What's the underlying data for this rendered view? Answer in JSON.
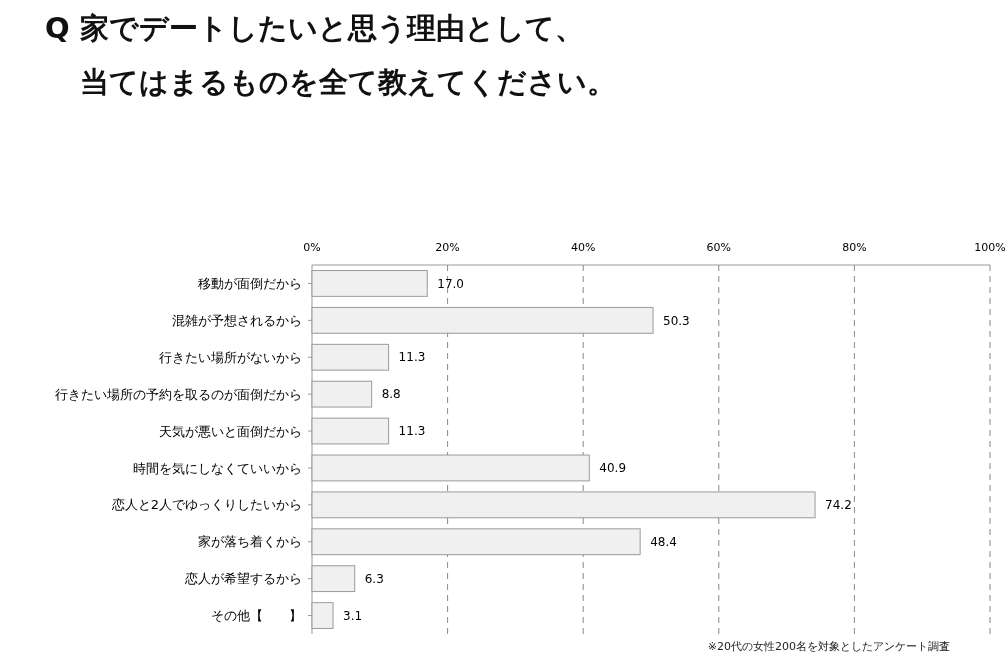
{
  "chart_data": {
    "type": "bar",
    "orientation": "horizontal",
    "title": "Q 家でデートしたいと思う理由として、",
    "subtitle": "当てはまるものを全て教えてください。",
    "categories": [
      "移動が面倒だから",
      "混雑が予想されるから",
      "行きたい場所がないから",
      "行きたい場所の予約を取るのが面倒だから",
      "天気が悪いと面倒だから",
      "時間を気にしなくていいから",
      "恋人と2人でゆっくりしたいから",
      "家が落ち着くから",
      "恋人が希望するから",
      "その他【　　】"
    ],
    "values": [
      17.0,
      50.3,
      11.3,
      8.8,
      11.3,
      40.9,
      74.2,
      48.4,
      6.3,
      3.1
    ],
    "value_labels": [
      "17.0",
      "50.3",
      "11.3",
      "8.8",
      "11.3",
      "40.9",
      "74.2",
      "48.4",
      "6.3",
      "3.1"
    ],
    "color": "#f0f0f0",
    "xlim": [
      0,
      100
    ],
    "xticks": [
      {
        "value": 0,
        "label": "0%"
      },
      {
        "value": 20,
        "label": "20%"
      },
      {
        "value": 40,
        "label": "40%"
      },
      {
        "value": 60,
        "label": "60%"
      },
      {
        "value": 80,
        "label": "80%"
      },
      {
        "value": 100,
        "label": "100%"
      }
    ],
    "grid": "x",
    "annotations": [
      "※20代の女性200名を対象としたアンケート調査"
    ]
  }
}
